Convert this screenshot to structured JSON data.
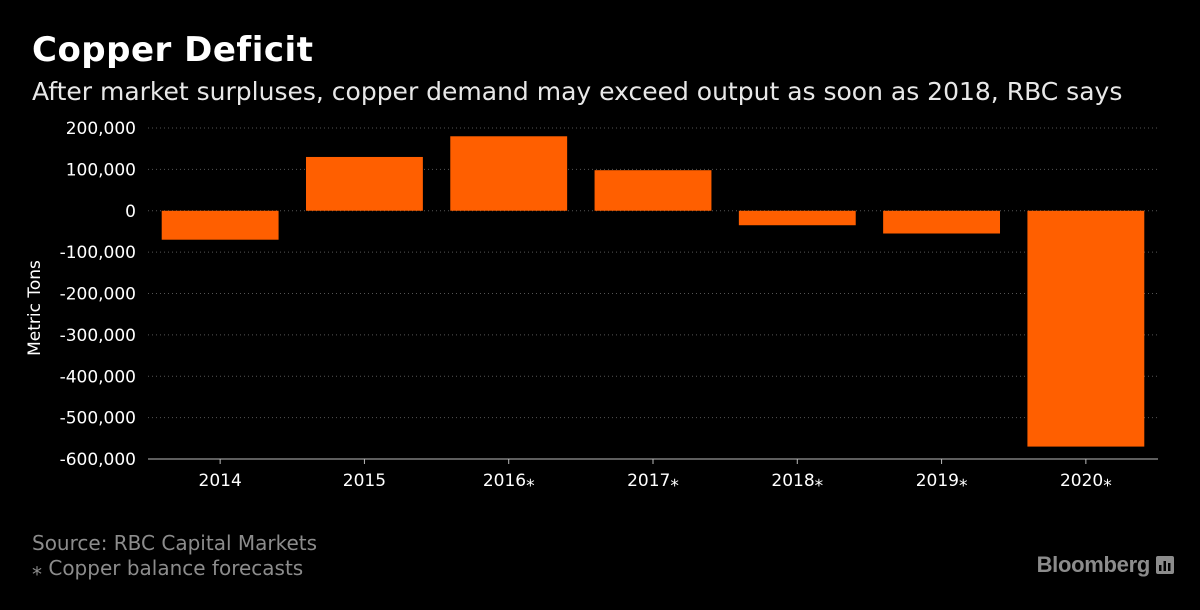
{
  "header": {
    "title": "Copper Deficit",
    "subtitle": "After market surpluses, copper demand may exceed output as soon as 2018, RBC says"
  },
  "footer": {
    "source": "Source: RBC Capital Markets",
    "footnote": "⁎ Copper balance forecasts",
    "brand": "Bloomberg",
    "brand_icon": "bloomberg-terminal-icon"
  },
  "colors": {
    "background": "#000000",
    "bar": "#ff5f00",
    "text": "#ffffff",
    "muted": "#8c8c8c",
    "grid": "#555555"
  },
  "chart_data": {
    "type": "bar",
    "title": "Copper Deficit",
    "subtitle": "After market surpluses, copper demand may exceed output as soon as 2018, RBC says",
    "xlabel": "",
    "ylabel": "Metric Tons",
    "categories": [
      "2014",
      "2015",
      "2016⁎",
      "2017⁎",
      "2018⁎",
      "2019⁎",
      "2020⁎"
    ],
    "values": [
      -70000,
      130000,
      180000,
      98000,
      -35000,
      -55000,
      -570000
    ],
    "ylim": [
      -600000,
      200000
    ],
    "yticks": [
      200000,
      100000,
      0,
      -100000,
      -200000,
      -300000,
      -400000,
      -500000,
      -600000
    ],
    "ytick_labels": [
      "200,000",
      "100,000",
      "0",
      "-100,000",
      "-200,000",
      "-300,000",
      "-400,000",
      "-500,000",
      "-600,000"
    ],
    "grid": "horizontal-dotted",
    "legend": "none"
  }
}
